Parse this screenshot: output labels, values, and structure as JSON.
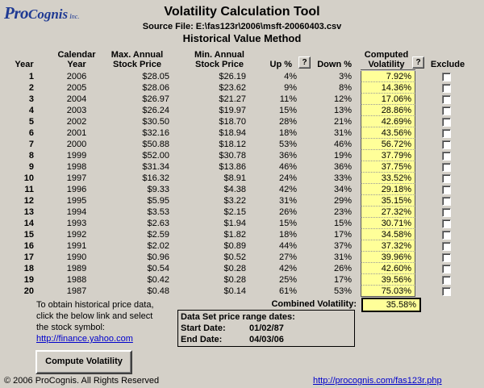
{
  "logo": {
    "pro": "Pro",
    "cognis": "Cognis",
    "inc": "Inc."
  },
  "title": "Volatility Calculation Tool",
  "source_file": "Source File: E:\\fas123r\\2006\\msft-20060403.csv",
  "method": "Historical Value Method",
  "headers": {
    "year": "Year",
    "calendar_year": [
      "Calendar",
      "Year"
    ],
    "max_price": [
      "Max. Annual",
      "Stock Price"
    ],
    "min_price": [
      "Min. Annual",
      "Stock Price"
    ],
    "up": "Up %",
    "down": "Down %",
    "computed": [
      "Computed",
      "Volatility"
    ],
    "exclude": "Exclude",
    "help": "?"
  },
  "rows": [
    {
      "year": "1",
      "cal": "2006",
      "max": "$28.05",
      "min": "$26.19",
      "up": "4%",
      "down": "3%",
      "vol": "7.92%"
    },
    {
      "year": "2",
      "cal": "2005",
      "max": "$28.06",
      "min": "$23.62",
      "up": "9%",
      "down": "8%",
      "vol": "14.36%"
    },
    {
      "year": "3",
      "cal": "2004",
      "max": "$26.97",
      "min": "$21.27",
      "up": "11%",
      "down": "12%",
      "vol": "17.06%"
    },
    {
      "year": "4",
      "cal": "2003",
      "max": "$26.24",
      "min": "$19.97",
      "up": "15%",
      "down": "13%",
      "vol": "28.86%"
    },
    {
      "year": "5",
      "cal": "2002",
      "max": "$30.50",
      "min": "$18.70",
      "up": "28%",
      "down": "21%",
      "vol": "42.69%"
    },
    {
      "year": "6",
      "cal": "2001",
      "max": "$32.16",
      "min": "$18.94",
      "up": "18%",
      "down": "31%",
      "vol": "43.56%"
    },
    {
      "year": "7",
      "cal": "2000",
      "max": "$50.88",
      "min": "$18.12",
      "up": "53%",
      "down": "46%",
      "vol": "56.72%"
    },
    {
      "year": "8",
      "cal": "1999",
      "max": "$52.00",
      "min": "$30.78",
      "up": "36%",
      "down": "19%",
      "vol": "37.79%"
    },
    {
      "year": "9",
      "cal": "1998",
      "max": "$31.34",
      "min": "$13.86",
      "up": "46%",
      "down": "36%",
      "vol": "37.75%"
    },
    {
      "year": "10",
      "cal": "1997",
      "max": "$16.32",
      "min": "$8.91",
      "up": "24%",
      "down": "33%",
      "vol": "33.52%"
    },
    {
      "year": "11",
      "cal": "1996",
      "max": "$9.33",
      "min": "$4.38",
      "up": "42%",
      "down": "34%",
      "vol": "29.18%"
    },
    {
      "year": "12",
      "cal": "1995",
      "max": "$5.95",
      "min": "$3.22",
      "up": "31%",
      "down": "29%",
      "vol": "35.15%"
    },
    {
      "year": "13",
      "cal": "1994",
      "max": "$3.53",
      "min": "$2.15",
      "up": "26%",
      "down": "23%",
      "vol": "27.32%"
    },
    {
      "year": "14",
      "cal": "1993",
      "max": "$2.63",
      "min": "$1.94",
      "up": "15%",
      "down": "15%",
      "vol": "30.71%"
    },
    {
      "year": "15",
      "cal": "1992",
      "max": "$2.59",
      "min": "$1.82",
      "up": "18%",
      "down": "17%",
      "vol": "34.58%"
    },
    {
      "year": "16",
      "cal": "1991",
      "max": "$2.02",
      "min": "$0.89",
      "up": "44%",
      "down": "37%",
      "vol": "37.32%"
    },
    {
      "year": "17",
      "cal": "1990",
      "max": "$0.96",
      "min": "$0.52",
      "up": "27%",
      "down": "31%",
      "vol": "39.96%"
    },
    {
      "year": "18",
      "cal": "1989",
      "max": "$0.54",
      "min": "$0.28",
      "up": "42%",
      "down": "26%",
      "vol": "42.60%"
    },
    {
      "year": "19",
      "cal": "1988",
      "max": "$0.42",
      "min": "$0.28",
      "up": "25%",
      "down": "17%",
      "vol": "39.56%"
    },
    {
      "year": "20",
      "cal": "1987",
      "max": "$0.48",
      "min": "$0.14",
      "up": "61%",
      "down": "53%",
      "vol": "75.03%"
    }
  ],
  "combined": {
    "label": "Combined Volatility:",
    "value": "35.58%"
  },
  "info": {
    "text": [
      "To obtain historical price data,",
      "click the below link and select",
      "the stock symbol:"
    ],
    "link": "http://finance.yahoo.com"
  },
  "dataset": {
    "heading": "Data Set price range dates:",
    "start_label": "Start Date:",
    "start_value": "01/02/87",
    "end_label": "End Date:",
    "end_value": "04/03/06"
  },
  "compute_button": "Compute Volatility",
  "footer": {
    "copyright": "© 2006 ProCognis. All Rights Reserved",
    "url": "http://procognis.com/fas123r.php"
  },
  "colors": {
    "background": "#d4d0c8",
    "highlight": "#ffff99",
    "logo": "#1f3a93",
    "link": "#0000cc"
  }
}
